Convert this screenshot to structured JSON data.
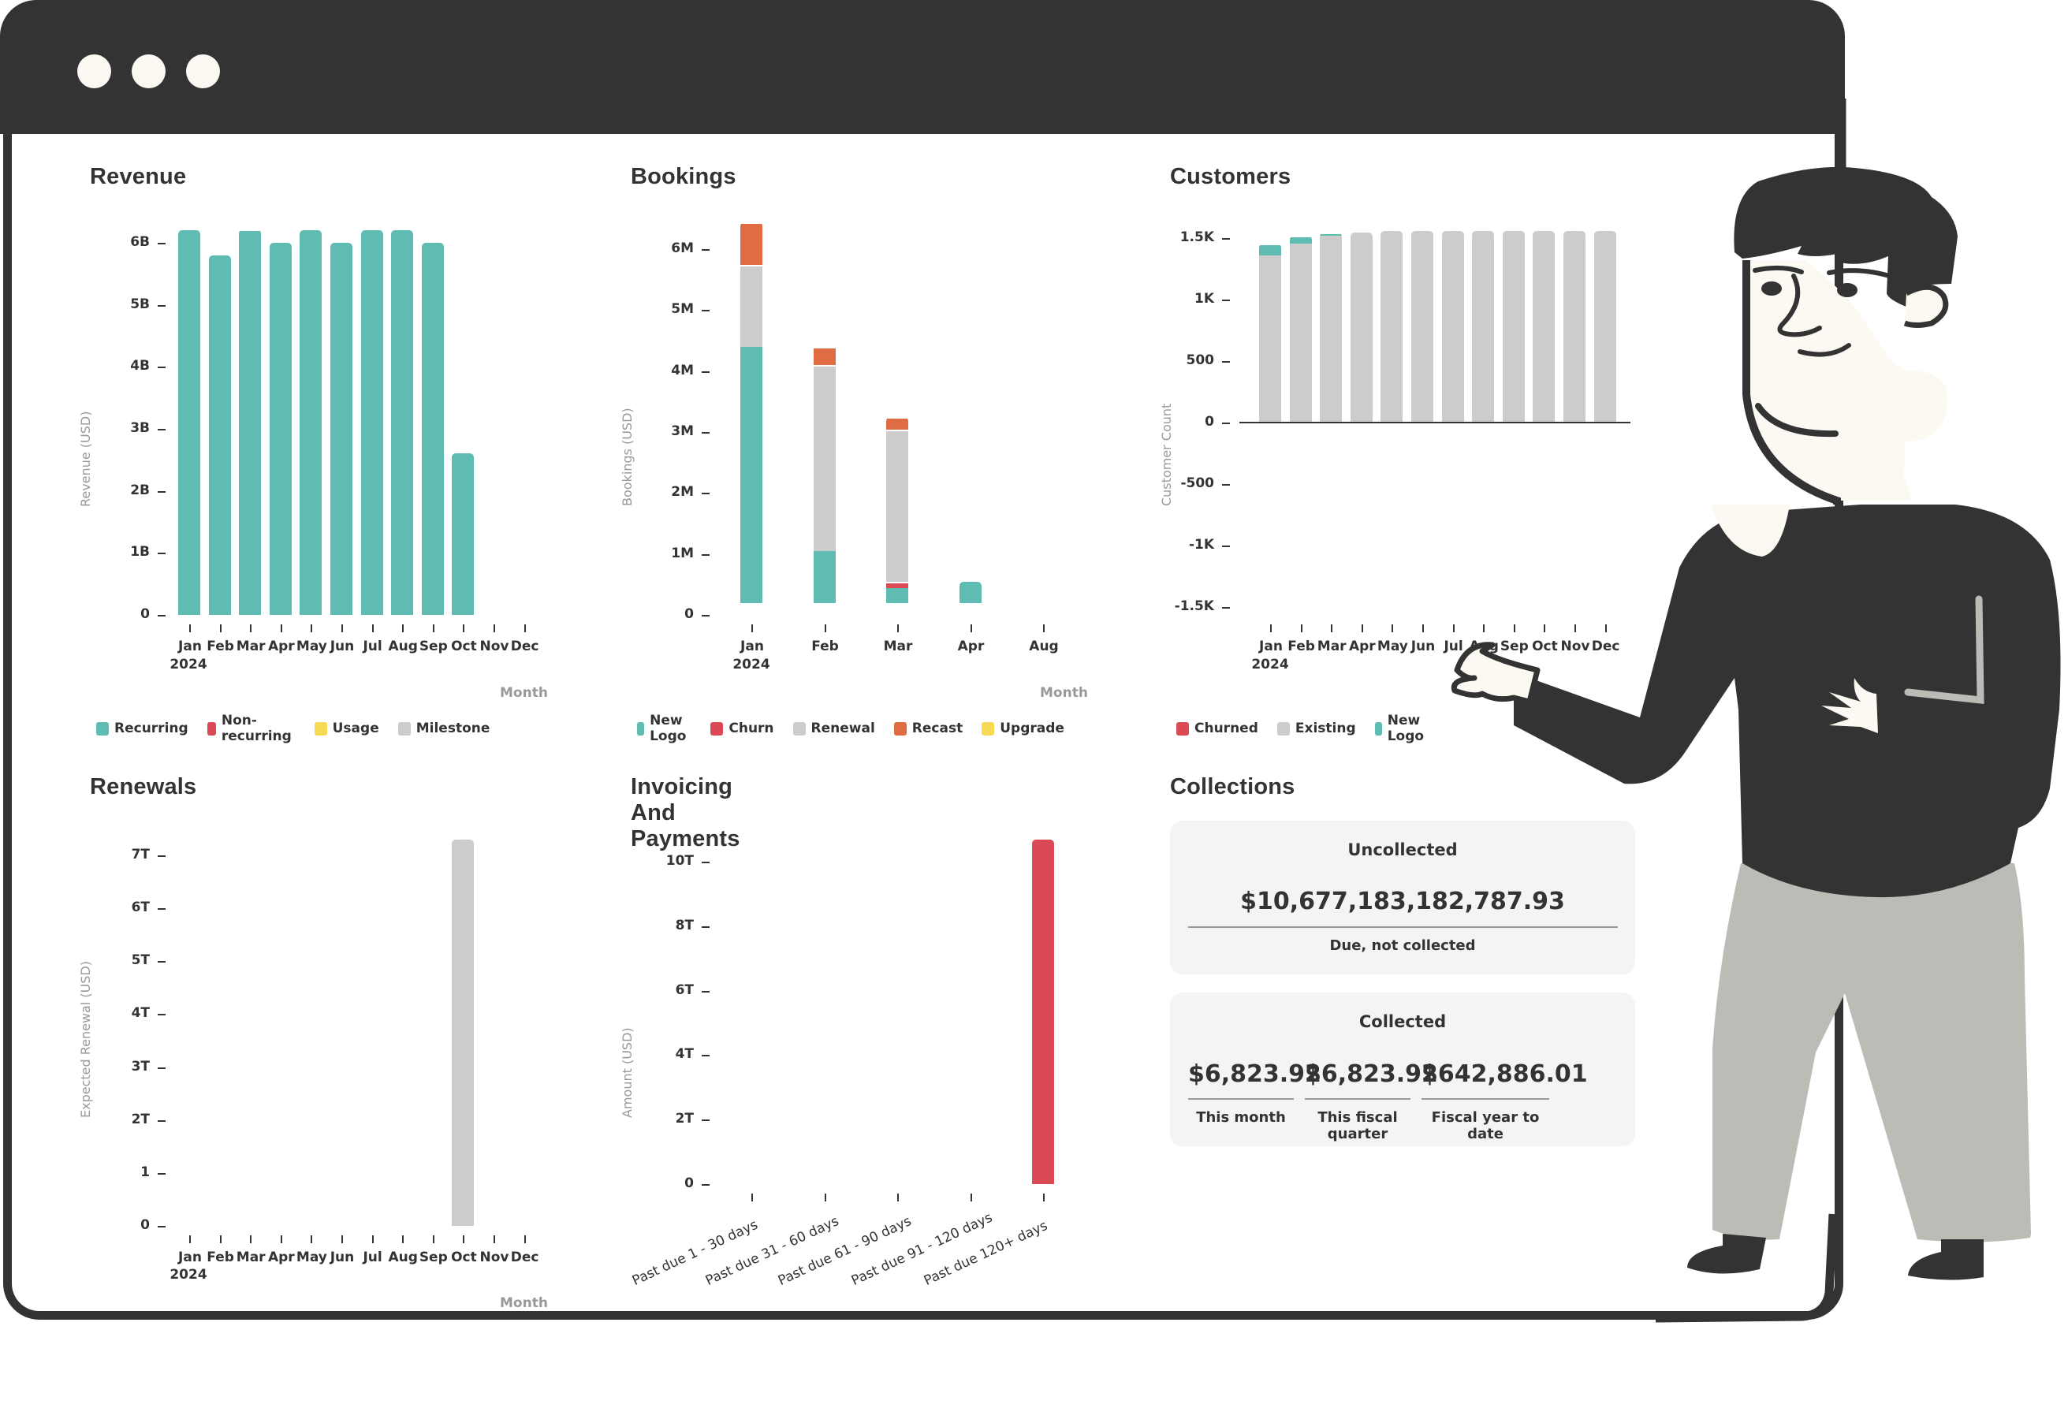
{
  "window": {
    "controls": [
      "dot-1",
      "dot-2",
      "dot-3"
    ]
  },
  "colors": {
    "teal": "#5ebcb3",
    "red": "#d94a55",
    "yellow": "#f6da55",
    "gray": "#cccccc",
    "orange": "#e06c43",
    "frame": "#333333",
    "skin": "#fcf8f2",
    "pants": "#bcbbb5"
  },
  "revenue": {
    "title": "Revenue",
    "y_title": "Revenue (USD)",
    "x_title": "Month",
    "y_ticks": [
      "0",
      "1B",
      "2B",
      "3B",
      "4B",
      "5B",
      "6B"
    ],
    "x_ticks": [
      "Jan",
      "Feb",
      "Mar",
      "Apr",
      "May",
      "Jun",
      "Jul",
      "Aug",
      "Sep",
      "Oct",
      "Nov",
      "Dec"
    ],
    "x_year": "2024",
    "legend": [
      {
        "label": "Recurring",
        "color": "#5ebcb3"
      },
      {
        "label": "Non-recurring",
        "color": "#d94a55"
      },
      {
        "label": "Usage",
        "color": "#f6da55"
      },
      {
        "label": "Milestone",
        "color": "#cccccc"
      }
    ]
  },
  "bookings": {
    "title": "Bookings",
    "y_title": "Bookings (USD)",
    "x_title": "Month",
    "y_ticks": [
      "0",
      "1M",
      "2M",
      "3M",
      "4M",
      "5M",
      "6M"
    ],
    "x_ticks": [
      "Jan",
      "Feb",
      "Mar",
      "Apr",
      "Aug"
    ],
    "x_year": "2024",
    "legend": [
      {
        "label": "New Logo",
        "color": "#5ebcb3"
      },
      {
        "label": "Churn",
        "color": "#d94a55"
      },
      {
        "label": "Renewal",
        "color": "#cccccc"
      },
      {
        "label": "Recast",
        "color": "#e06c43"
      },
      {
        "label": "Upgrade",
        "color": "#f6da55"
      }
    ]
  },
  "customers": {
    "title": "Customers",
    "y_title": "Customer Count",
    "x_title": "Month",
    "y_ticks": [
      "-1.5K",
      "-1K",
      "-500",
      "0",
      "500",
      "1K",
      "1.5K"
    ],
    "x_ticks": [
      "Jan",
      "Feb",
      "Mar",
      "Apr",
      "May",
      "Jun",
      "Jul",
      "Aug",
      "Sep",
      "Oct",
      "Nov",
      "Dec"
    ],
    "x_year": "2024",
    "legend": [
      {
        "label": "Churned",
        "color": "#d94a55"
      },
      {
        "label": "Existing",
        "color": "#cccccc"
      },
      {
        "label": "New Logo",
        "color": "#5ebcb3"
      }
    ]
  },
  "renewals": {
    "title": "Renewals",
    "y_title": "Expected Renewal (USD)",
    "x_title": "Month",
    "y_ticks": [
      "0",
      "1",
      "2T",
      "3T",
      "4T",
      "5T",
      "6T",
      "7T"
    ],
    "x_ticks": [
      "Jan",
      "Feb",
      "Mar",
      "Apr",
      "May",
      "Jun",
      "Jul",
      "Aug",
      "Sep",
      "Oct",
      "Nov",
      "Dec"
    ],
    "x_year": "2024"
  },
  "invoicing": {
    "title": "Invoicing And Payments",
    "y_title": "Amount (USD)",
    "y_ticks": [
      "0",
      "2T",
      "4T",
      "6T",
      "8T",
      "10T"
    ],
    "x_ticks": [
      "Past due 1 - 30 days",
      "Past due 31 - 60 days",
      "Past due 61 - 90 days",
      "Past due 91 - 120 days",
      "Past due 120+ days"
    ]
  },
  "collections": {
    "title": "Collections",
    "uncollected": {
      "title": "Uncollected",
      "value": "$10,677,183,182,787.93",
      "caption": "Due, not collected"
    },
    "collected": {
      "title": "Collected",
      "items": [
        {
          "value": "$6,823.92",
          "caption": "This month"
        },
        {
          "value": "$6,823.92",
          "caption": "This fiscal quarter"
        },
        {
          "value": "$642,886.01",
          "caption": "Fiscal year to date"
        }
      ]
    }
  },
  "chart_data": [
    {
      "type": "bar",
      "title": "Revenue",
      "xlabel": "Month",
      "ylabel": "Revenue (USD)",
      "categories": [
        "Jan 2024",
        "Feb",
        "Mar",
        "Apr",
        "May",
        "Jun",
        "Jul",
        "Aug",
        "Sep",
        "Oct",
        "Nov",
        "Dec"
      ],
      "series": [
        {
          "name": "Recurring",
          "values": [
            6200000000.0,
            5800000000.0,
            6200000000.0,
            6000000000.0,
            6200000000.0,
            6000000000.0,
            6200000000.0,
            6200000000.0,
            6000000000.0,
            2600000000.0,
            0,
            0
          ]
        },
        {
          "name": "Non-recurring",
          "values": [
            0,
            0,
            0,
            0,
            0,
            0,
            0,
            0,
            0,
            0,
            0,
            0
          ]
        },
        {
          "name": "Usage",
          "values": [
            0,
            0,
            0,
            0,
            0,
            0,
            0,
            0,
            0,
            0,
            0,
            0
          ]
        },
        {
          "name": "Milestone",
          "values": [
            0,
            0,
            10000000.0,
            0,
            0,
            0,
            0,
            0,
            0,
            0,
            0,
            0
          ]
        }
      ],
      "ylim": [
        0,
        6200000000.0
      ],
      "stacked": true,
      "legend_position": "bottom"
    },
    {
      "type": "bar",
      "title": "Bookings",
      "xlabel": "Month",
      "ylabel": "Bookings (USD)",
      "categories": [
        "Jan 2024",
        "Feb",
        "Mar",
        "Apr",
        "Aug"
      ],
      "series": [
        {
          "name": "New Logo",
          "values": [
            4200000.0,
            850000.0,
            250000.0,
            350000.0,
            0
          ]
        },
        {
          "name": "Churn",
          "values": [
            0,
            0,
            100000.0,
            0,
            0
          ]
        },
        {
          "name": "Renewal",
          "values": [
            1350000.0,
            3050000.0,
            2500000.0,
            0,
            0
          ]
        },
        {
          "name": "Recast",
          "values": [
            700000.0,
            300000.0,
            200000.0,
            0,
            0
          ]
        },
        {
          "name": "Upgrade",
          "values": [
            0,
            30000.0,
            0,
            0,
            0
          ]
        }
      ],
      "ylim": [
        0,
        6300000.0
      ],
      "stacked": true,
      "legend_position": "bottom"
    },
    {
      "type": "bar",
      "title": "Customers",
      "xlabel": "Month",
      "ylabel": "Customer Count",
      "categories": [
        "Jan 2024",
        "Feb",
        "Mar",
        "Apr",
        "May",
        "Jun",
        "Jul",
        "Aug",
        "Sep",
        "Oct",
        "Nov",
        "Dec"
      ],
      "series": [
        {
          "name": "Churned",
          "values": [
            0,
            0,
            0,
            0,
            0,
            0,
            0,
            0,
            0,
            0,
            0,
            0
          ]
        },
        {
          "name": "Existing",
          "values": [
            1350,
            1450,
            1510,
            1540,
            1550,
            1550,
            1550,
            1550,
            1550,
            1550,
            1550,
            1550
          ]
        },
        {
          "name": "New Logo",
          "values": [
            100,
            60,
            30,
            0,
            0,
            0,
            0,
            0,
            0,
            0,
            0,
            0
          ]
        }
      ],
      "ylim": [
        -1600,
        1600
      ],
      "stacked": true,
      "legend_position": "bottom"
    },
    {
      "type": "bar",
      "title": "Renewals",
      "xlabel": "Month",
      "ylabel": "Expected Renewal (USD)",
      "categories": [
        "Jan 2024",
        "Feb",
        "Mar",
        "Apr",
        "May",
        "Jun",
        "Jul",
        "Aug",
        "Sep",
        "Oct",
        "Nov",
        "Dec"
      ],
      "values": [
        0,
        0,
        0,
        0,
        0,
        0,
        0,
        0,
        0,
        7300000000000.0,
        0,
        0
      ],
      "ylim": [
        0,
        7300000000000.0
      ]
    },
    {
      "type": "bar",
      "title": "Invoicing And Payments",
      "xlabel": "",
      "ylabel": "Amount (USD)",
      "categories": [
        "Past due 1 - 30 days",
        "Past due 31 - 60 days",
        "Past due 61 - 90 days",
        "Past due 91 - 120 days",
        "Past due 120+ days"
      ],
      "values": [
        0,
        0,
        0,
        0,
        10680000000000.0
      ],
      "ylim": [
        0,
        10700000000000.0
      ]
    }
  ]
}
